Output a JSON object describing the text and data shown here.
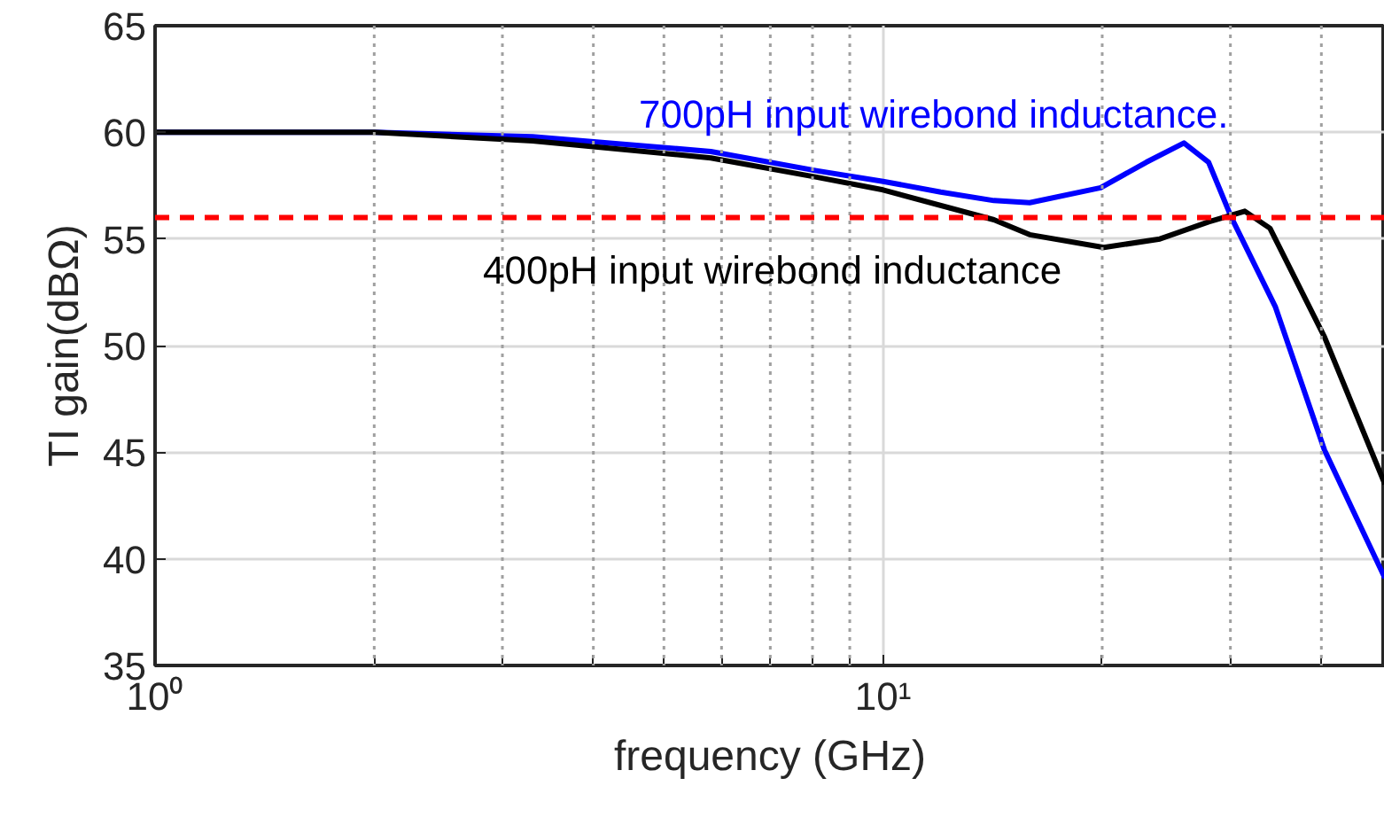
{
  "chart_data": {
    "type": "line",
    "xlabel": "frequency (GHz)",
    "ylabel": "TI gain(dBΩ)",
    "log": "x",
    "xlim": [
      1,
      48.9
    ],
    "ylim": [
      35,
      65
    ],
    "xticks": [
      {
        "value": 1,
        "label": "10⁰"
      },
      {
        "value": 2,
        "label": null
      },
      {
        "value": 3,
        "label": null
      },
      {
        "value": 4,
        "label": null
      },
      {
        "value": 5,
        "label": null
      },
      {
        "value": 6,
        "label": null
      },
      {
        "value": 7,
        "label": null
      },
      {
        "value": 8,
        "label": null
      },
      {
        "value": 9,
        "label": null
      },
      {
        "value": 10,
        "label": "10¹"
      },
      {
        "value": 20,
        "label": null
      },
      {
        "value": 30,
        "label": null
      },
      {
        "value": 40,
        "label": null
      }
    ],
    "yticks": [
      35,
      40,
      45,
      50,
      55,
      60,
      65
    ],
    "grid": true,
    "line_style": "solid",
    "marker": "none",
    "series": [
      {
        "name": "700pH input wirebond inductance.",
        "color": "#0000ff",
        "x": [
          1,
          2,
          3.3,
          5.8,
          8.1,
          10,
          12,
          14.2,
          15.9,
          19.9,
          23,
          25.9,
          28,
          30.1,
          34.6,
          40.4,
          48.9
        ],
        "values": [
          60,
          60,
          59.8,
          59.1,
          58.2,
          57.7,
          57.2,
          56.8,
          56.7,
          57.4,
          58.6,
          59.5,
          58.6,
          56,
          51.8,
          45.1,
          39.1
        ]
      },
      {
        "name": "400pH input wirebond inductance",
        "color": "#000000",
        "x": [
          1,
          2,
          3.3,
          5.8,
          8.1,
          10,
          14.2,
          15.9,
          20.1,
          24,
          28,
          31.4,
          34,
          40.4,
          48.9
        ],
        "values": [
          60,
          60,
          59.6,
          58.8,
          57.9,
          57.3,
          55.9,
          55.2,
          54.6,
          55,
          55.8,
          56.3,
          55.5,
          50.4,
          43.5
        ]
      }
    ],
    "ref_lines": [
      {
        "axis": "y",
        "value": 56,
        "label": null,
        "color": "#ff0000",
        "line_style": "dashed"
      }
    ]
  }
}
